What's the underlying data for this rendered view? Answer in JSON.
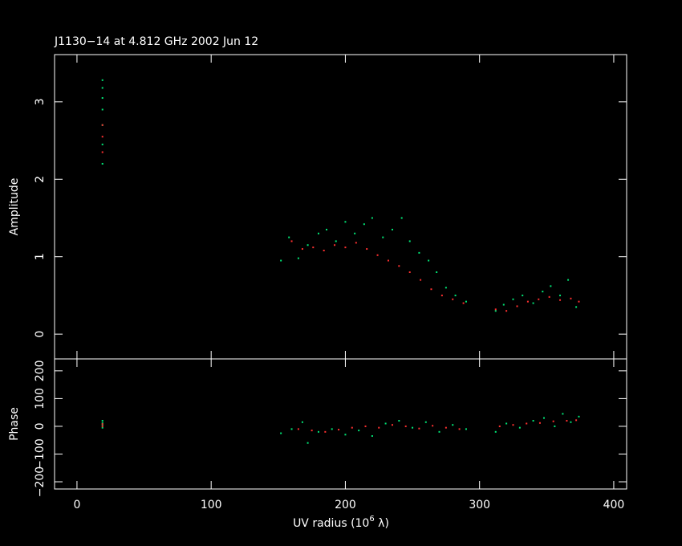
{
  "chart_data": [
    {
      "type": "scatter",
      "title": "J1130−14 at 4.812 GHz 2002 Jun 12",
      "y_label": "Amplitude",
      "xlim": [
        -16.7,
        409.6
      ],
      "xticks": [
        0,
        100,
        200,
        300,
        400
      ],
      "ylim": [
        -0.32,
        3.61
      ],
      "yticks": [
        0,
        1,
        2,
        3
      ],
      "series": [
        {
          "color": "#00e676",
          "x": [
            19,
            19,
            19,
            19,
            19,
            19,
            19,
            152,
            158,
            165,
            172,
            180,
            186,
            193,
            200,
            207,
            214,
            220,
            228,
            235,
            242,
            248,
            255,
            262,
            268,
            275,
            282,
            290,
            312,
            318,
            325,
            332,
            340,
            347,
            353,
            360,
            366,
            372
          ],
          "values": [
            2.2,
            2.45,
            2.7,
            2.9,
            3.05,
            3.18,
            3.28,
            0.95,
            1.25,
            0.98,
            1.15,
            1.3,
            1.35,
            1.2,
            1.45,
            1.3,
            1.42,
            1.5,
            1.25,
            1.35,
            1.5,
            1.2,
            1.05,
            0.95,
            0.8,
            0.6,
            0.5,
            0.42,
            0.3,
            0.38,
            0.45,
            0.5,
            0.4,
            0.55,
            0.62,
            0.5,
            0.7,
            0.35
          ]
        },
        {
          "color": "#ff3030",
          "x": [
            19,
            19,
            19,
            160,
            168,
            176,
            184,
            192,
            200,
            208,
            216,
            224,
            232,
            240,
            248,
            256,
            264,
            272,
            280,
            288,
            312,
            320,
            328,
            336,
            344,
            352,
            360,
            368,
            374
          ],
          "values": [
            2.35,
            2.55,
            2.7,
            1.2,
            1.1,
            1.12,
            1.08,
            1.15,
            1.12,
            1.18,
            1.1,
            1.02,
            0.95,
            0.88,
            0.8,
            0.7,
            0.58,
            0.5,
            0.45,
            0.4,
            0.32,
            0.3,
            0.36,
            0.42,
            0.45,
            0.48,
            0.44,
            0.46,
            0.42
          ]
        }
      ]
    },
    {
      "type": "scatter",
      "y_label": "Phase",
      "x_label": "UV radius  (10",
      "x_label_exp": "6",
      "x_label_end": " λ)",
      "xlim": [
        -16.7,
        409.6
      ],
      "xticks": [
        0,
        100,
        200,
        300,
        400
      ],
      "ylim": [
        -226,
        243
      ],
      "yticks": [
        {
          "value": -200,
          "label": "−200"
        },
        {
          "value": -100,
          "label": "−100"
        },
        0,
        100,
        200
      ],
      "series": [
        {
          "color": "#00e676",
          "x": [
            19,
            19,
            19,
            19,
            152,
            160,
            168,
            172,
            180,
            190,
            200,
            210,
            220,
            230,
            240,
            250,
            260,
            270,
            280,
            290,
            312,
            320,
            330,
            340,
            348,
            356,
            362,
            368,
            374
          ],
          "values": [
            -5,
            5,
            12,
            20,
            -25,
            -10,
            15,
            -60,
            -20,
            -10,
            -30,
            -15,
            -35,
            10,
            20,
            -5,
            15,
            -20,
            5,
            -10,
            -20,
            10,
            -5,
            20,
            30,
            0,
            45,
            15,
            35
          ]
        },
        {
          "color": "#ff3030",
          "x": [
            19,
            19,
            165,
            175,
            185,
            195,
            205,
            215,
            225,
            235,
            245,
            255,
            265,
            275,
            285,
            315,
            325,
            335,
            345,
            355,
            365,
            372
          ],
          "values": [
            0,
            8,
            -10,
            -15,
            -20,
            -12,
            -5,
            0,
            -5,
            5,
            0,
            -8,
            2,
            -5,
            -10,
            0,
            5,
            10,
            12,
            18,
            20,
            22
          ]
        }
      ]
    }
  ]
}
